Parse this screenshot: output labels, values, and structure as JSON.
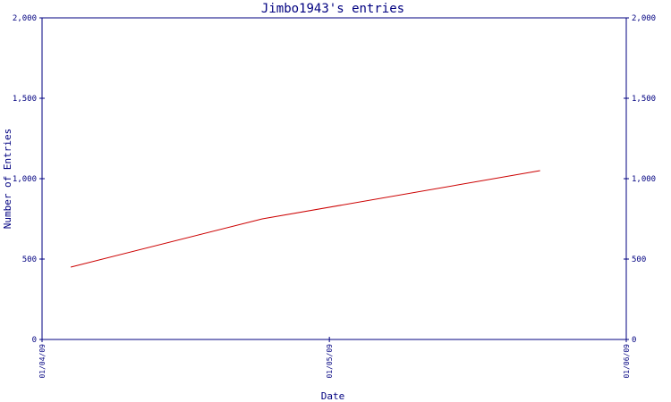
{
  "chart_data": {
    "type": "line",
    "title": "Jimbo1943's entries",
    "xlabel": "Date",
    "ylabel": "Number of Entries",
    "ylim": [
      0,
      2000
    ],
    "yticks": [
      0,
      500,
      1000,
      1500,
      2000
    ],
    "ytick_labels": [
      "0",
      "500",
      "1,000",
      "1,500",
      "2,000"
    ],
    "xlim": [
      "2009-04-01",
      "2009-06-01"
    ],
    "xticks": [
      "2009-04-01",
      "2009-05-01",
      "2009-06-01"
    ],
    "xtick_labels": [
      "01/04/09",
      "01/05/09",
      "01/06/09"
    ],
    "grid": false,
    "line_color": "#cc0000",
    "axis_color": "#000080",
    "text_color": "#000080",
    "series": [
      {
        "x": [
          "2009-04-04",
          "2009-04-24",
          "2009-05-23"
        ],
        "values": [
          450,
          750,
          1050
        ]
      }
    ]
  }
}
